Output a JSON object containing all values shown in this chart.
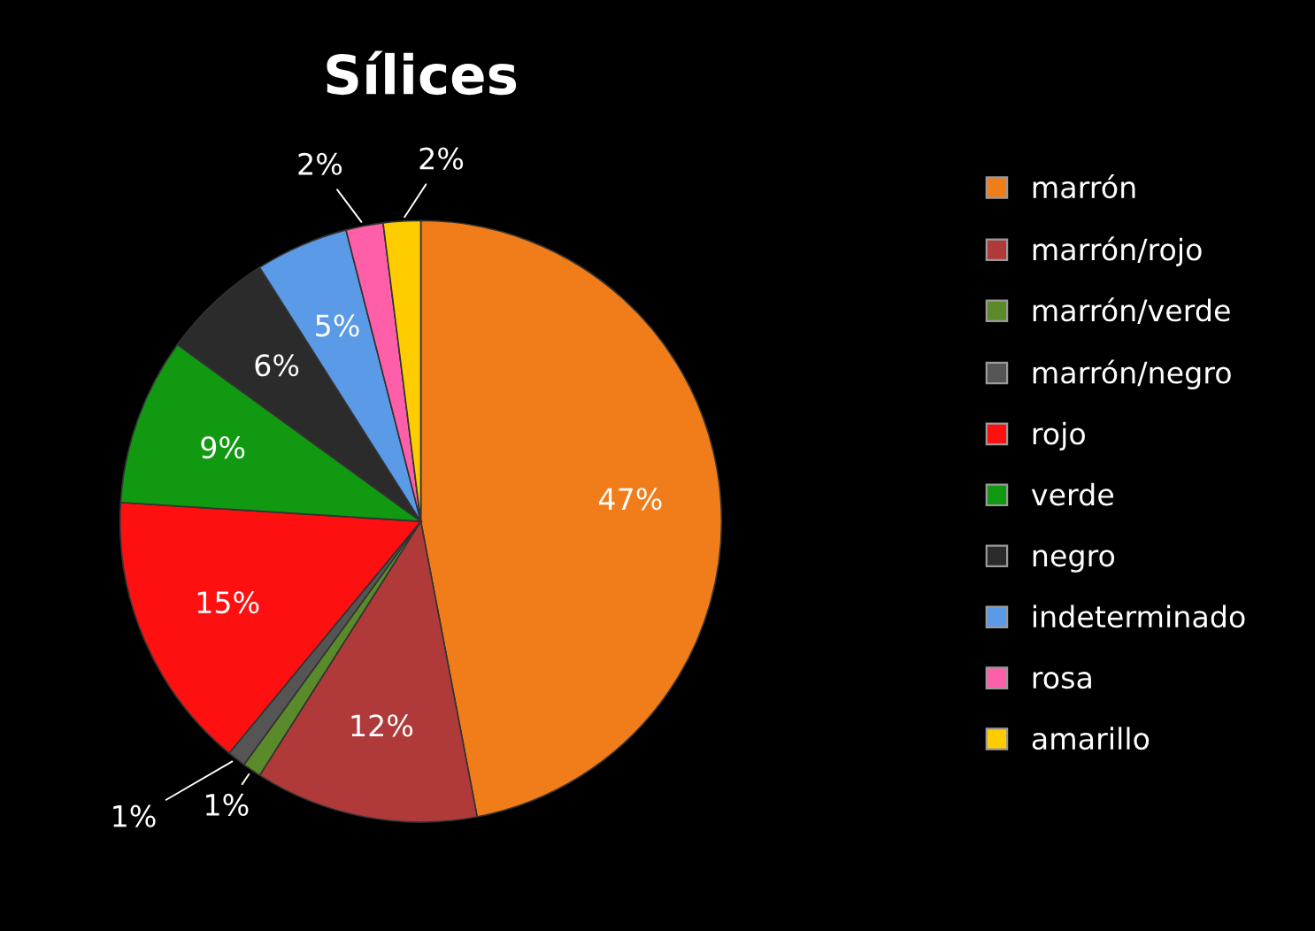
{
  "chart_data": {
    "type": "pie",
    "title": "Sílices",
    "categories": [
      "marrón",
      "marrón/rojo",
      "marrón/verde",
      "marrón/negro",
      "rojo",
      "verde",
      "negro",
      "indeterminado",
      "rosa",
      "amarillo"
    ],
    "values": [
      47,
      12,
      1,
      1,
      15,
      9,
      6,
      5,
      2,
      2
    ],
    "value_labels": [
      "47%",
      "12%",
      "1%",
      "1%",
      "15%",
      "9%",
      "6%",
      "5%",
      "2%",
      "2%"
    ],
    "colors": [
      "#f07d1a",
      "#b03a3a",
      "#5a8a2a",
      "#555555",
      "#ff1010",
      "#119911",
      "#2b2b2b",
      "#5a9ae6",
      "#ff5fa8",
      "#ffcc00"
    ],
    "legend": "right"
  }
}
